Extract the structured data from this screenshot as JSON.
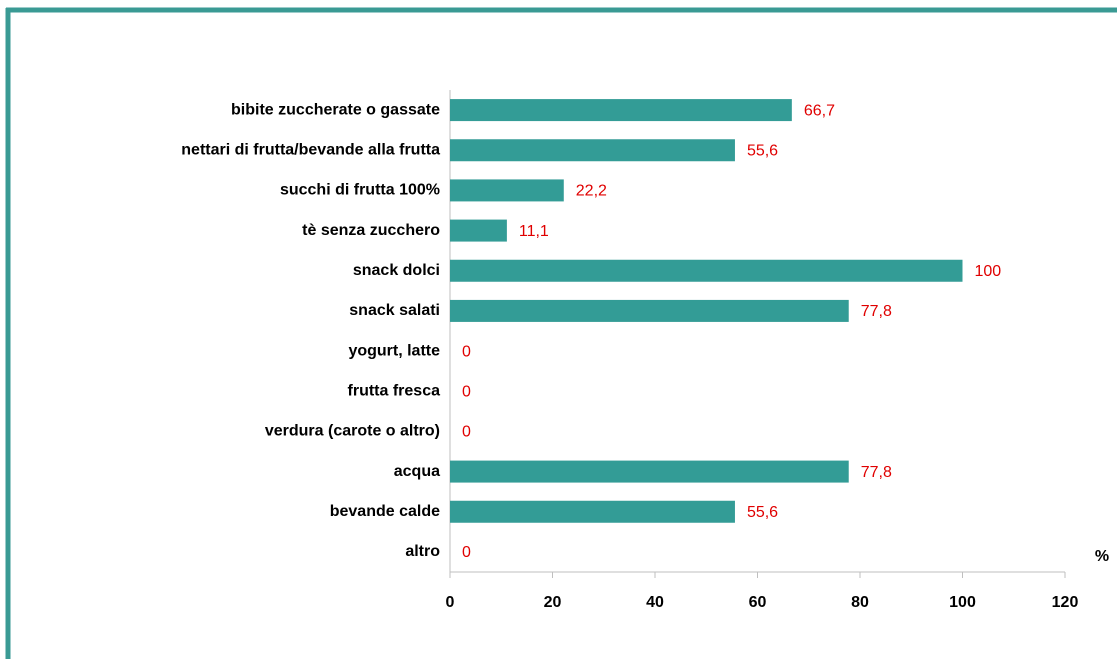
{
  "chart_data": {
    "type": "bar",
    "orientation": "horizontal",
    "categories": [
      "bibite zuccherate o gassate",
      "nettari di frutta/bevande alla frutta",
      "succhi di frutta 100%",
      "tè senza zucchero",
      "snack dolci",
      "snack salati",
      "yogurt, latte",
      "frutta fresca",
      "verdura (carote o altro)",
      "acqua",
      "bevande calde",
      "altro"
    ],
    "values": [
      66.7,
      55.6,
      22.2,
      11.1,
      100,
      77.8,
      0,
      0,
      0,
      77.8,
      55.6,
      0
    ],
    "value_labels": [
      "66,7",
      "55,6",
      "22,2",
      "11,1",
      "100",
      "77,8",
      "0",
      "0",
      "0",
      "77,8",
      "55,6",
      "0"
    ],
    "color": "#339c96",
    "label_color": "#e00000",
    "x_label": "%",
    "xlim": [
      0,
      120
    ],
    "xticks": [
      0,
      20,
      40,
      60,
      80,
      100,
      120
    ],
    "grid": false
  }
}
